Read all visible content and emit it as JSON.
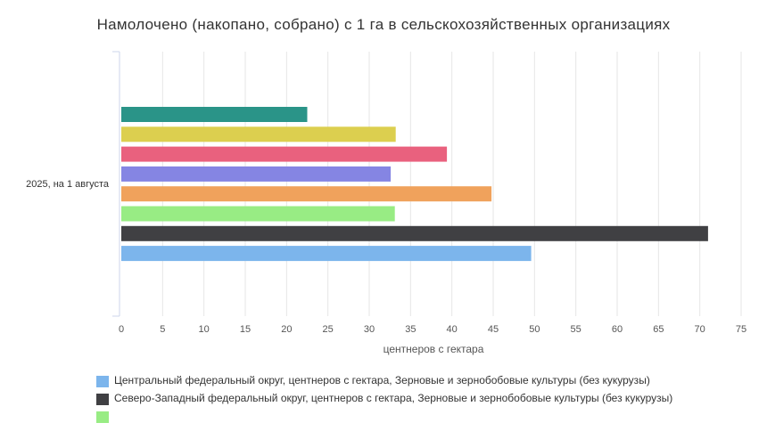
{
  "chart_data": {
    "type": "bar",
    "orientation": "horizontal",
    "title": "Намолочено (накопано, собрано) с 1 га в сельскохозяйственных организациях",
    "categories": [
      "2025, на 1 августа"
    ],
    "xlabel": "центнеров с гектара",
    "xlim": [
      0,
      75
    ],
    "xticks": [
      0,
      5,
      10,
      15,
      20,
      25,
      30,
      35,
      40,
      45,
      50,
      55,
      60,
      65,
      70,
      75
    ],
    "grid": true,
    "legend_position": "bottom",
    "series": [
      {
        "values": [
          22.5
        ],
        "color": "#2a9488"
      },
      {
        "values": [
          33.2
        ],
        "color": "#dccf4f"
      },
      {
        "values": [
          39.4
        ],
        "color": "#e9617e"
      },
      {
        "values": [
          32.6
        ],
        "color": "#8585e3"
      },
      {
        "values": [
          44.8
        ],
        "color": "#f0a25c"
      },
      {
        "values": [
          33.1
        ],
        "color": "#98ec84"
      },
      {
        "name": "Северо-Западный федеральный округ, центнеров с гектара, Зерновые и зернобобовые культуры (без кукурузы)",
        "values": [
          71.0
        ],
        "color": "#404043"
      },
      {
        "name": "Центральный федеральный округ, центнеров с гектара, Зерновые и зернобобовые культуры (без кукурузы)",
        "values": [
          49.6
        ],
        "color": "#7cb5ec"
      }
    ]
  },
  "legend": {
    "items": [
      {
        "label": "Центральный федеральный округ, центнеров с гектара, Зерновые и зернобобовые культуры (без кукурузы)",
        "color": "#7cb5ec"
      },
      {
        "label": "Северо-Западный федеральный округ, центнеров с гектара, Зерновые и зернобобовые культуры (без кукурузы)",
        "color": "#404043"
      },
      {
        "label": "",
        "color": "#98ec84"
      }
    ]
  }
}
